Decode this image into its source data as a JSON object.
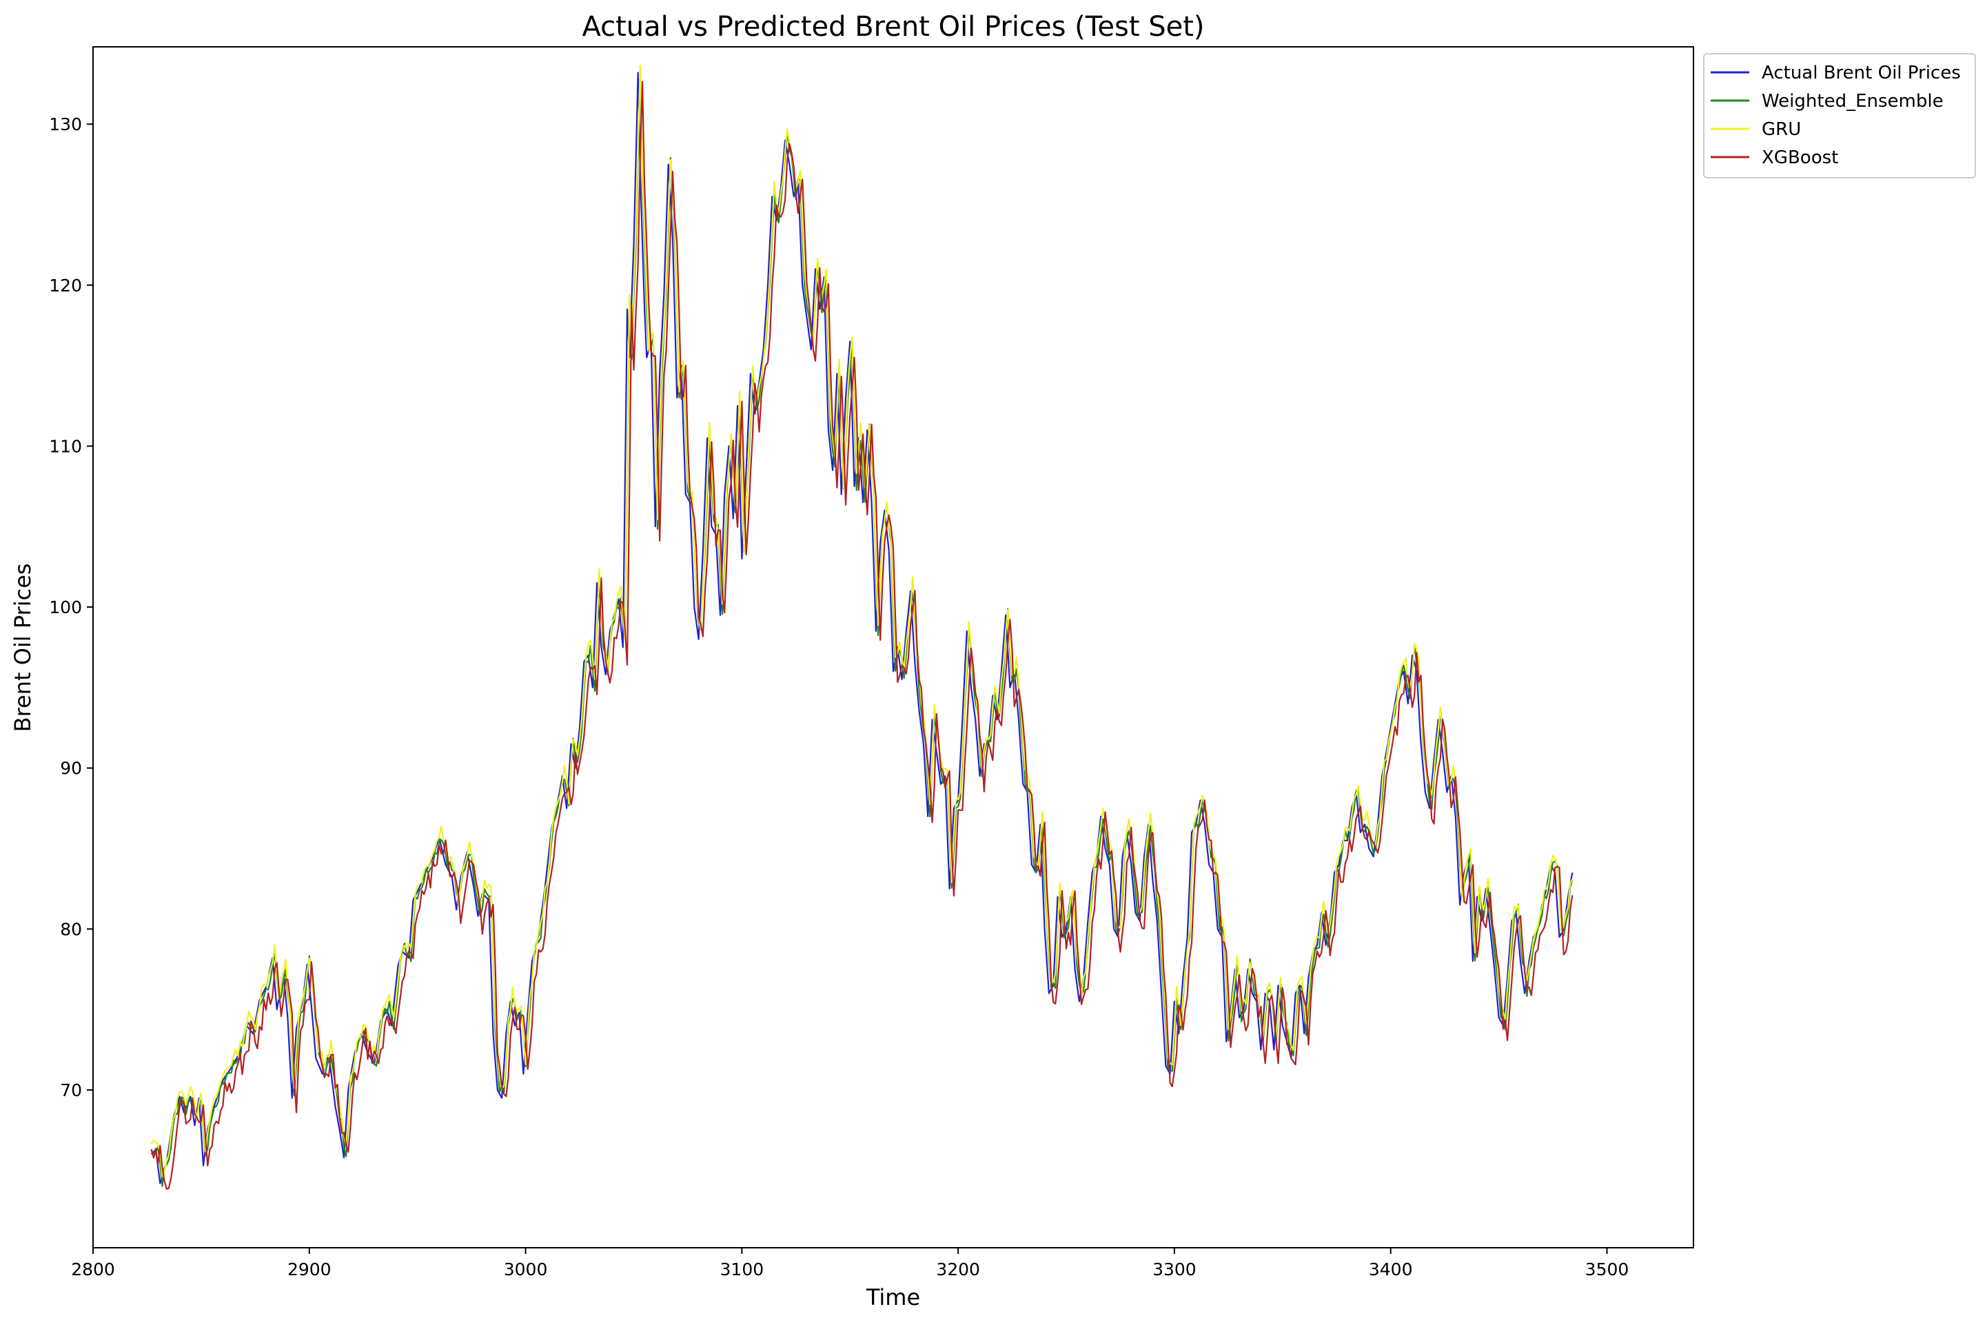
{
  "chart_data": {
    "type": "line",
    "title": "Actual vs Predicted Brent Oil Prices (Test Set)",
    "xlabel": "Time",
    "ylabel": "Brent Oil Prices",
    "xlim": [
      2800,
      3540
    ],
    "ylim": [
      60.2,
      134.8
    ],
    "xticks": [
      2800,
      2900,
      3000,
      3100,
      3200,
      3300,
      3400,
      3500
    ],
    "yticks": [
      70,
      80,
      90,
      100,
      110,
      120,
      130
    ],
    "grid": false,
    "legend_position": "outside-top-right",
    "x_start": 2827,
    "x_step": 1,
    "actual_keyframes": [
      [
        2827,
        66.0
      ],
      [
        2829,
        66.3
      ],
      [
        2831,
        64.2
      ],
      [
        2834,
        65.5
      ],
      [
        2837,
        68.2
      ],
      [
        2840,
        69.6
      ],
      [
        2842,
        68.6
      ],
      [
        2845,
        69.6
      ],
      [
        2847,
        67.8
      ],
      [
        2849,
        69.5
      ],
      [
        2851,
        65.3
      ],
      [
        2853,
        67.6
      ],
      [
        2856,
        69.0
      ],
      [
        2860,
        70.6
      ],
      [
        2865,
        71.6
      ],
      [
        2868,
        72.4
      ],
      [
        2871,
        74.0
      ],
      [
        2874,
        73.5
      ],
      [
        2877,
        75.6
      ],
      [
        2880,
        76.4
      ],
      [
        2883,
        78.2
      ],
      [
        2885,
        75.0
      ],
      [
        2888,
        77.3
      ],
      [
        2890,
        74.5
      ],
      [
        2892,
        69.5
      ],
      [
        2894,
        73.8
      ],
      [
        2897,
        75.6
      ],
      [
        2899,
        77.8
      ],
      [
        2901,
        75.2
      ],
      [
        2903,
        72.0
      ],
      [
        2906,
        71.0
      ],
      [
        2909,
        72.2
      ],
      [
        2912,
        69.0
      ],
      [
        2914,
        67.5
      ],
      [
        2916,
        65.8
      ],
      [
        2918,
        70.0
      ],
      [
        2921,
        72.3
      ],
      [
        2924,
        73.5
      ],
      [
        2927,
        72.3
      ],
      [
        2930,
        71.6
      ],
      [
        2933,
        74.3
      ],
      [
        2936,
        75.0
      ],
      [
        2938,
        74.0
      ],
      [
        2941,
        77.7
      ],
      [
        2943,
        78.6
      ],
      [
        2946,
        78.2
      ],
      [
        2948,
        81.8
      ],
      [
        2951,
        82.6
      ],
      [
        2954,
        83.6
      ],
      [
        2957,
        84.4
      ],
      [
        2960,
        85.7
      ],
      [
        2963,
        84.0
      ],
      [
        2966,
        83.2
      ],
      [
        2968,
        81.2
      ],
      [
        2970,
        83.2
      ],
      [
        2973,
        84.8
      ],
      [
        2976,
        82.6
      ],
      [
        2978,
        80.8
      ],
      [
        2980,
        82.2
      ],
      [
        2983,
        81.8
      ],
      [
        2985,
        73.5
      ],
      [
        2987,
        70.0
      ],
      [
        2989,
        69.5
      ],
      [
        2991,
        73.5
      ],
      [
        2993,
        75.5
      ],
      [
        2995,
        74.0
      ],
      [
        2997,
        74.8
      ],
      [
        2999,
        71.0
      ],
      [
        3001,
        74.8
      ],
      [
        3003,
        78.0
      ],
      [
        3006,
        79.6
      ],
      [
        3009,
        82.6
      ],
      [
        3012,
        86.2
      ],
      [
        3015,
        88.0
      ],
      [
        3017,
        89.5
      ],
      [
        3019,
        87.5
      ],
      [
        3021,
        91.5
      ],
      [
        3023,
        90.0
      ],
      [
        3025,
        92.5
      ],
      [
        3027,
        96.6
      ],
      [
        3029,
        97.0
      ],
      [
        3031,
        95.0
      ],
      [
        3033,
        101.5
      ],
      [
        3035,
        97.5
      ],
      [
        3037,
        95.8
      ],
      [
        3039,
        98.5
      ],
      [
        3041,
        99.5
      ],
      [
        3043,
        100.5
      ],
      [
        3045,
        97.5
      ],
      [
        3047,
        118.5
      ],
      [
        3048,
        115.5
      ],
      [
        3050,
        122.5
      ],
      [
        3052,
        133.2
      ],
      [
        3053,
        127.0
      ],
      [
        3055,
        118.5
      ],
      [
        3056,
        115.5
      ],
      [
        3058,
        116.5
      ],
      [
        3060,
        105.0
      ],
      [
        3062,
        114.5
      ],
      [
        3064,
        119.5
      ],
      [
        3066,
        127.5
      ],
      [
        3068,
        123.0
      ],
      [
        3070,
        113.0
      ],
      [
        3072,
        115.0
      ],
      [
        3074,
        107.0
      ],
      [
        3076,
        106.5
      ],
      [
        3078,
        100.0
      ],
      [
        3080,
        98.0
      ],
      [
        3082,
        103.5
      ],
      [
        3084,
        110.5
      ],
      [
        3086,
        105.0
      ],
      [
        3088,
        104.5
      ],
      [
        3090,
        99.5
      ],
      [
        3092,
        107.0
      ],
      [
        3094,
        110.0
      ],
      [
        3096,
        105.5
      ],
      [
        3098,
        112.5
      ],
      [
        3100,
        103.0
      ],
      [
        3102,
        108.5
      ],
      [
        3104,
        114.5
      ],
      [
        3106,
        112.0
      ],
      [
        3108,
        114.0
      ],
      [
        3110,
        116.0
      ],
      [
        3112,
        120.0
      ],
      [
        3114,
        125.5
      ],
      [
        3116,
        124.0
      ],
      [
        3118,
        126.0
      ],
      [
        3120,
        129.0
      ],
      [
        3122,
        127.5
      ],
      [
        3124,
        125.5
      ],
      [
        3126,
        126.5
      ],
      [
        3128,
        120.0
      ],
      [
        3130,
        118.0
      ],
      [
        3132,
        116.0
      ],
      [
        3134,
        121.0
      ],
      [
        3136,
        118.5
      ],
      [
        3138,
        120.5
      ],
      [
        3140,
        111.0
      ],
      [
        3142,
        108.5
      ],
      [
        3144,
        114.5
      ],
      [
        3146,
        107.0
      ],
      [
        3148,
        113.0
      ],
      [
        3150,
        116.5
      ],
      [
        3152,
        107.5
      ],
      [
        3154,
        110.5
      ],
      [
        3156,
        106.5
      ],
      [
        3158,
        111.0
      ],
      [
        3160,
        106.5
      ],
      [
        3162,
        98.5
      ],
      [
        3164,
        104.0
      ],
      [
        3166,
        106.0
      ],
      [
        3168,
        103.5
      ],
      [
        3170,
        96.0
      ],
      [
        3172,
        97.5
      ],
      [
        3174,
        95.5
      ],
      [
        3176,
        98.5
      ],
      [
        3178,
        101.0
      ],
      [
        3180,
        96.5
      ],
      [
        3182,
        93.5
      ],
      [
        3184,
        91.5
      ],
      [
        3186,
        87.0
      ],
      [
        3188,
        93.0
      ],
      [
        3190,
        91.0
      ],
      [
        3192,
        89.0
      ],
      [
        3194,
        89.5
      ],
      [
        3196,
        82.5
      ],
      [
        3198,
        87.5
      ],
      [
        3200,
        88.0
      ],
      [
        3202,
        93.0
      ],
      [
        3204,
        98.5
      ],
      [
        3206,
        95.0
      ],
      [
        3208,
        93.0
      ],
      [
        3210,
        89.5
      ],
      [
        3212,
        91.5
      ],
      [
        3214,
        91.5
      ],
      [
        3216,
        94.5
      ],
      [
        3218,
        93.0
      ],
      [
        3220,
        96.0
      ],
      [
        3222,
        99.5
      ],
      [
        3224,
        95.0
      ],
      [
        3226,
        96.0
      ],
      [
        3228,
        93.0
      ],
      [
        3230,
        89.0
      ],
      [
        3232,
        88.5
      ],
      [
        3234,
        84.0
      ],
      [
        3236,
        83.5
      ],
      [
        3238,
        86.5
      ],
      [
        3240,
        80.0
      ],
      [
        3242,
        76.0
      ],
      [
        3244,
        76.5
      ],
      [
        3246,
        82.0
      ],
      [
        3248,
        79.5
      ],
      [
        3250,
        80.0
      ],
      [
        3252,
        82.0
      ],
      [
        3254,
        77.5
      ],
      [
        3256,
        75.5
      ],
      [
        3258,
        77.0
      ],
      [
        3260,
        80.5
      ],
      [
        3262,
        83.5
      ],
      [
        3264,
        84.5
      ],
      [
        3266,
        87.0
      ],
      [
        3268,
        85.0
      ],
      [
        3270,
        84.0
      ],
      [
        3272,
        80.0
      ],
      [
        3274,
        79.5
      ],
      [
        3276,
        84.5
      ],
      [
        3278,
        86.0
      ],
      [
        3280,
        84.0
      ],
      [
        3282,
        81.0
      ],
      [
        3284,
        80.5
      ],
      [
        3286,
        84.5
      ],
      [
        3288,
        86.5
      ],
      [
        3290,
        83.0
      ],
      [
        3292,
        80.5
      ],
      [
        3294,
        76.0
      ],
      [
        3296,
        71.5
      ],
      [
        3298,
        71.0
      ],
      [
        3300,
        75.5
      ],
      [
        3302,
        73.5
      ],
      [
        3304,
        77.0
      ],
      [
        3306,
        79.5
      ],
      [
        3308,
        86.0
      ],
      [
        3310,
        86.5
      ],
      [
        3312,
        88.0
      ],
      [
        3314,
        86.5
      ],
      [
        3316,
        84.0
      ],
      [
        3318,
        83.5
      ],
      [
        3320,
        80.0
      ],
      [
        3322,
        79.5
      ],
      [
        3324,
        73.0
      ],
      [
        3326,
        75.0
      ],
      [
        3328,
        77.5
      ],
      [
        3330,
        74.5
      ],
      [
        3332,
        75.0
      ],
      [
        3334,
        77.5
      ],
      [
        3336,
        76.0
      ],
      [
        3338,
        75.5
      ],
      [
        3340,
        72.5
      ],
      [
        3342,
        76.0
      ],
      [
        3344,
        75.5
      ],
      [
        3346,
        72.5
      ],
      [
        3348,
        76.5
      ],
      [
        3350,
        74.0
      ],
      [
        3352,
        73.0
      ],
      [
        3354,
        72.0
      ],
      [
        3356,
        76.0
      ],
      [
        3358,
        76.5
      ],
      [
        3360,
        73.5
      ],
      [
        3362,
        77.0
      ],
      [
        3364,
        78.5
      ],
      [
        3366,
        79.0
      ],
      [
        3368,
        81.0
      ],
      [
        3370,
        79.0
      ],
      [
        3372,
        80.5
      ],
      [
        3374,
        83.5
      ],
      [
        3376,
        84.0
      ],
      [
        3378,
        85.5
      ],
      [
        3380,
        85.5
      ],
      [
        3382,
        87.5
      ],
      [
        3384,
        88.5
      ],
      [
        3386,
        86.0
      ],
      [
        3388,
        86.5
      ],
      [
        3390,
        85.0
      ],
      [
        3392,
        84.5
      ],
      [
        3394,
        86.5
      ],
      [
        3396,
        89.5
      ],
      [
        3398,
        91.0
      ],
      [
        3400,
        92.5
      ],
      [
        3402,
        94.0
      ],
      [
        3404,
        95.5
      ],
      [
        3406,
        96.0
      ],
      [
        3408,
        94.0
      ],
      [
        3410,
        97.0
      ],
      [
        3412,
        96.0
      ],
      [
        3414,
        91.5
      ],
      [
        3416,
        88.5
      ],
      [
        3418,
        87.5
      ],
      [
        3420,
        90.5
      ],
      [
        3422,
        93.0
      ],
      [
        3424,
        91.0
      ],
      [
        3426,
        88.5
      ],
      [
        3428,
        89.5
      ],
      [
        3430,
        87.0
      ],
      [
        3432,
        81.5
      ],
      [
        3434,
        83.5
      ],
      [
        3436,
        84.5
      ],
      [
        3438,
        78.0
      ],
      [
        3440,
        82.0
      ],
      [
        3442,
        80.5
      ],
      [
        3444,
        82.5
      ],
      [
        3446,
        80.0
      ],
      [
        3448,
        77.5
      ],
      [
        3450,
        74.5
      ],
      [
        3452,
        74.0
      ],
      [
        3454,
        77.0
      ],
      [
        3456,
        80.5
      ],
      [
        3458,
        81.0
      ],
      [
        3460,
        78.0
      ],
      [
        3462,
        76.0
      ],
      [
        3464,
        78.0
      ],
      [
        3466,
        79.5
      ],
      [
        3468,
        80.0
      ],
      [
        3470,
        81.5
      ],
      [
        3472,
        82.5
      ],
      [
        3474,
        84.0
      ],
      [
        3476,
        83.5
      ],
      [
        3478,
        79.5
      ],
      [
        3480,
        80.0
      ],
      [
        3482,
        82.0
      ],
      [
        3484,
        83.5
      ]
    ],
    "series": [
      {
        "name": "Actual Brent Oil Prices",
        "color": "#1f1fd6",
        "lag": 0,
        "shift": 0.0,
        "amp": 0.0,
        "seed": 1
      },
      {
        "name": "Weighted_Ensemble",
        "color": "#1b8a1b",
        "lag": 1,
        "shift": 0.2,
        "amp": 0.45,
        "seed": 7
      },
      {
        "name": "GRU",
        "color": "#f2f21a",
        "lag": 1,
        "shift": 0.6,
        "amp": 0.35,
        "seed": 13
      },
      {
        "name": "XGBoost",
        "color": "#b22222",
        "lag": 2,
        "shift": -0.4,
        "amp": 0.8,
        "seed": 29
      }
    ]
  }
}
